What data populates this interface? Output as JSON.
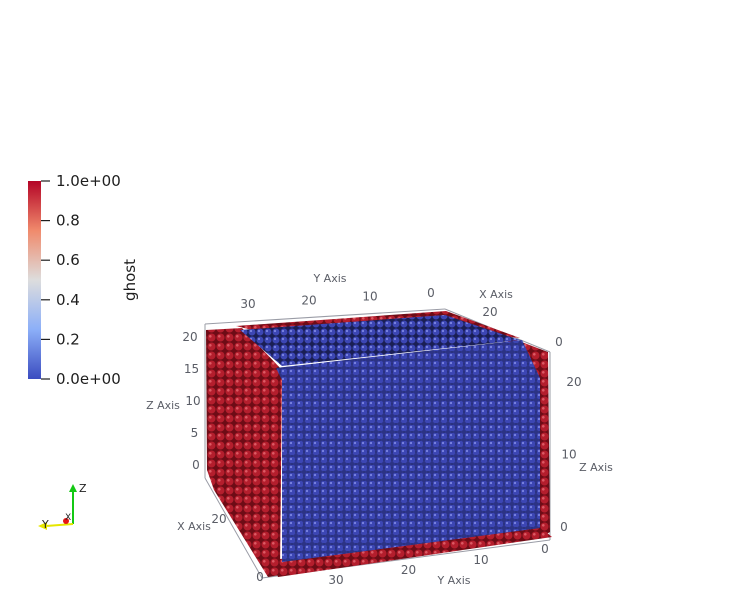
{
  "colorbar": {
    "title": "ghost",
    "ticks": [
      {
        "label": "1.0e+00",
        "value": 1.0
      },
      {
        "label": "0.8",
        "value": 0.8
      },
      {
        "label": "0.6",
        "value": 0.6
      },
      {
        "label": "0.4",
        "value": 0.4
      },
      {
        "label": "0.2",
        "value": 0.2
      },
      {
        "label": "0.0e+00",
        "value": 0.0
      }
    ],
    "color_low": "#3b4cc0",
    "color_mid": "#dddddd",
    "color_high": "#b40426"
  },
  "axes": {
    "top": {
      "y_axis_title": "Y Axis",
      "y_ticks": [
        "30",
        "20",
        "10",
        "0"
      ],
      "x_axis_title": "X Axis",
      "x_ticks": [
        "20",
        "0"
      ]
    },
    "left": {
      "z_axis_title": "Z Axis",
      "z_ticks": [
        "20",
        "15",
        "10",
        "5",
        "0"
      ],
      "x_axis_title": "X Axis",
      "x_ticks": [
        "20",
        "0"
      ]
    },
    "right": {
      "z_axis_title": "Z Axis",
      "z_ticks": [
        "20",
        "10",
        "0"
      ],
      "bottom_tick": "0"
    },
    "bottom": {
      "y_axis_title": "Y Axis",
      "y_ticks": [
        "30",
        "20",
        "10"
      ]
    }
  },
  "orientation": {
    "z": "Z",
    "y": "Y",
    "x": "X",
    "z_color": "#14c814",
    "y_color": "#e6e600",
    "x_color": "#e61414"
  },
  "scene": {
    "ghost_color": "#b41e2d",
    "interior_color": "#3c46b4"
  }
}
